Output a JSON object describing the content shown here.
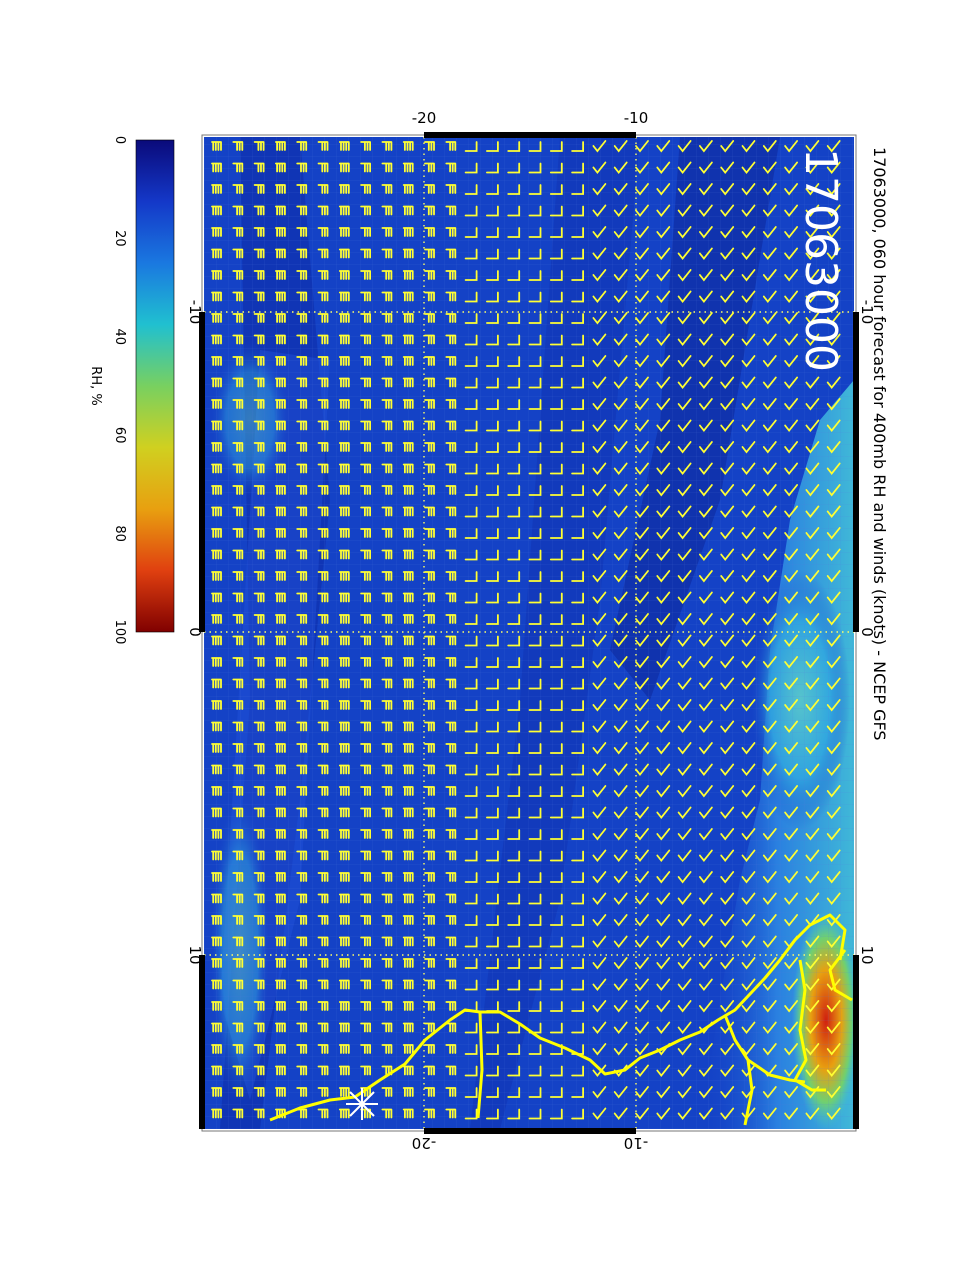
{
  "title": "17063000, 060 hour forecast for 400mb RH and winds (knots) - NCEP GFS",
  "stamp": "17063000",
  "colorbar": {
    "label": "RH, %",
    "ticks": [
      "0",
      "20",
      "40",
      "60",
      "80",
      "100"
    ],
    "stops": [
      "#0a0a7a",
      "#1438c8",
      "#1a78e0",
      "#20c0d0",
      "#78d060",
      "#d0d020",
      "#e8a010",
      "#e04010",
      "#800000"
    ]
  },
  "axes": {
    "lon_ticks_top": [
      "-20",
      "-10"
    ],
    "lon_ticks_bottom": [
      "-20",
      "-10"
    ],
    "lat_ticks_left": [
      "-10",
      "0",
      "10"
    ],
    "lat_ticks_right": [
      "-10",
      "0",
      "10"
    ]
  },
  "colors": {
    "ocean": "#1440c8",
    "barb": "#ffff33",
    "coast": "#ffff00",
    "grid": "#ffff66",
    "title_text": "#000000",
    "stamp_text": "#ffffff"
  },
  "icons": {
    "wind_barb": "wind-barb-icon",
    "star_marker": "star-icon"
  }
}
